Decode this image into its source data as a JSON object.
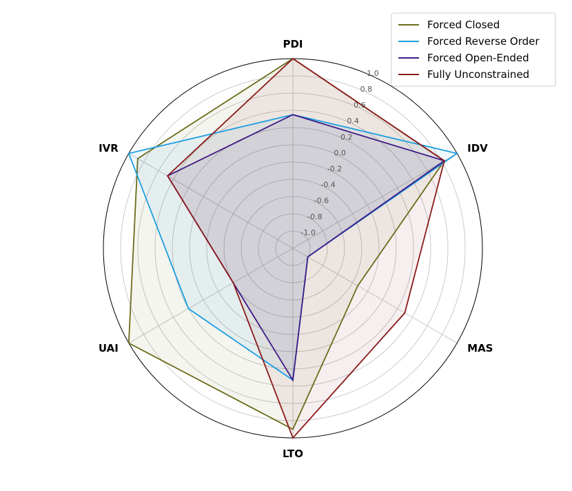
{
  "chart_data": {
    "type": "radar",
    "title": "",
    "axes": [
      "PDI",
      "IDV",
      "MAS",
      "LTO",
      "UAI",
      "IVR"
    ],
    "rlim": [
      -1.2,
      1.0
    ],
    "rticks": [
      -1.0,
      -0.8,
      -0.6,
      -0.4,
      -0.2,
      0.0,
      0.2,
      0.4,
      0.6,
      0.8,
      1.0
    ],
    "rtick_labels": [
      "-1.0",
      "-0.8",
      "-0.6",
      "-0.4",
      "-0.2",
      "0.0",
      "0.2",
      "0.4",
      "0.6",
      "0.8",
      "1.0"
    ],
    "grid": true,
    "legend_position": "top-right",
    "series": [
      {
        "name": "Forced Closed",
        "color": "#6b6b1b",
        "values": [
          1.0,
          0.83,
          -0.33,
          0.9,
          1.0,
          0.88
        ]
      },
      {
        "name": "Forced Reverse Order",
        "color": "#1a9fe0",
        "values": [
          0.35,
          1.0,
          -1.0,
          0.33,
          0.2,
          1.0
        ]
      },
      {
        "name": "Forced Open-Ended",
        "color": "#3f1a86",
        "values": [
          0.35,
          0.83,
          -1.0,
          0.33,
          -0.4,
          0.48
        ]
      },
      {
        "name": "Fully Unconstrained",
        "color": "#8b1a1a",
        "values": [
          1.0,
          0.83,
          0.3,
          1.0,
          -0.4,
          0.48
        ]
      }
    ]
  }
}
